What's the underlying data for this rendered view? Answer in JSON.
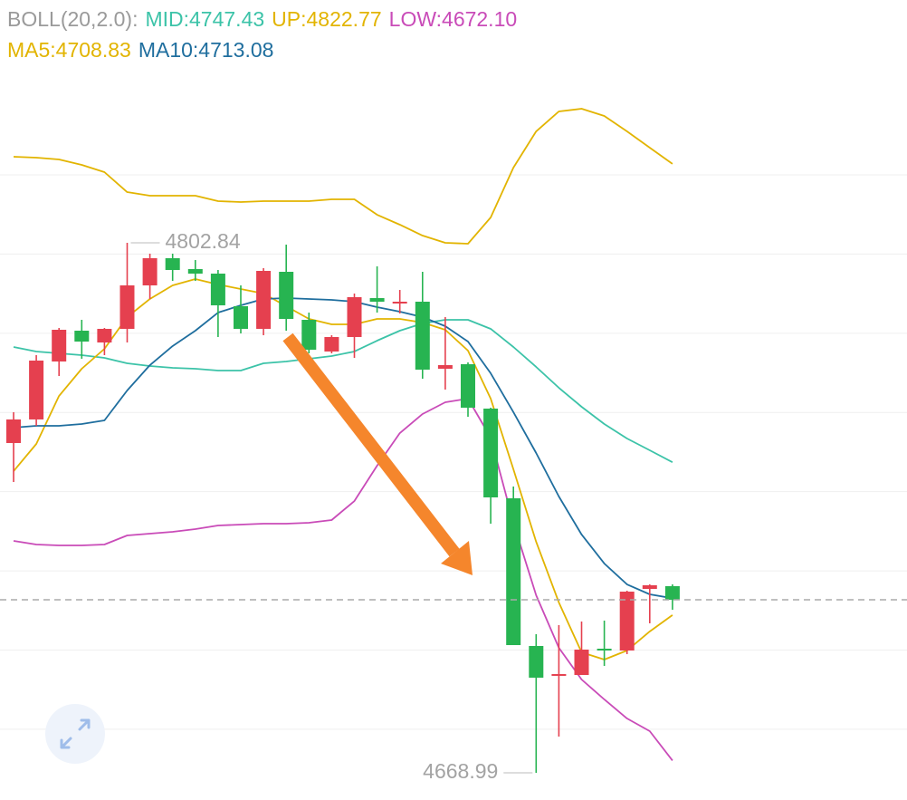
{
  "chart_data": {
    "type": "candlestick",
    "indicator": "BOLL(20,2.0):",
    "up_color": "#e5404f",
    "down_color": "#27b451",
    "ylim": [
      4662.13,
      4864.16
    ],
    "yticks": [
      4680,
      4700,
      4720,
      4740,
      4760,
      4780,
      4800,
      4820
    ],
    "grid": true,
    "open": [
      4752.28,
      4758.23,
      4772.87,
      4780.65,
      4777.67,
      4781.11,
      4792.09,
      4798.95,
      4796.21,
      4795.06,
      4786.83,
      4781.11,
      4795.52,
      4783.39,
      4775.39,
      4779.05,
      4788.88,
      4787.51,
      4787.97,
      4771.04,
      4772.18,
      4760.97,
      4738.32,
      4701.03,
      4693.48,
      4693.7,
      4700.34,
      4699.88,
      4715.44,
      4716.13
    ],
    "high": [
      4760.06,
      4774.47,
      4781.33,
      4783.39,
      4781.33,
      4802.84,
      4800.1,
      4800.1,
      4798.49,
      4795.98,
      4792.09,
      4796.44,
      4802.38,
      4785.22,
      4779.5,
      4790.03,
      4796.89,
      4790.94,
      4795.52,
      4784.08,
      4772.64,
      4761.2,
      4741.29,
      4704.0,
      4706.29,
      4707.2,
      4707.43,
      4714.98,
      4716.58,
      4716.58
    ],
    "low": [
      4742.44,
      4756.62,
      4769.21,
      4773.56,
      4774.47,
      4777.67,
      4788.66,
      4793.23,
      4793.23,
      4779.05,
      4779.96,
      4779.5,
      4780.65,
      4774.93,
      4774.93,
      4773.78,
      4785.22,
      4785.0,
      4768.52,
      4765.78,
      4758.91,
      4731.91,
      4701.25,
      4668.99,
      4678.15,
      4693.7,
      4695.99,
      4698.97,
      4706.75,
      4710.18
    ],
    "close": [
      4758.23,
      4773.1,
      4780.88,
      4777.9,
      4781.11,
      4792.09,
      4798.95,
      4795.98,
      4795.06,
      4787.05,
      4781.11,
      4795.75,
      4783.62,
      4775.84,
      4779.05,
      4789.11,
      4787.97,
      4787.97,
      4770.81,
      4771.95,
      4761.2,
      4738.55,
      4701.25,
      4693.02,
      4693.93,
      4700.11,
      4699.88,
      4714.75,
      4716.36,
      4712.69
    ],
    "series": [
      {
        "name": "MID:4747.43",
        "color": "#3cc3a8",
        "values": [
          4776.53,
          4775.39,
          4774.93,
          4774.47,
          4773.78,
          4772.41,
          4771.72,
          4771.27,
          4771.04,
          4770.58,
          4770.58,
          4772.41,
          4772.87,
          4773.56,
          4774.24,
          4775.39,
          4778.13,
          4780.65,
          4782.48,
          4783.39,
          4783.39,
          4781.11,
          4776.53,
          4771.5,
          4766.23,
          4761.43,
          4757.08,
          4753.42,
          4750.45,
          4747.43
        ]
      },
      {
        "name": "UP:4822.77",
        "color": "#e2b400",
        "values": [
          4824.58,
          4824.35,
          4823.89,
          4822.52,
          4820.69,
          4815.65,
          4814.74,
          4814.74,
          4814.74,
          4813.37,
          4813.14,
          4813.37,
          4813.37,
          4813.37,
          4813.82,
          4813.82,
          4809.93,
          4807.42,
          4804.67,
          4802.84,
          4802.61,
          4809.25,
          4821.83,
          4830.98,
          4836.02,
          4836.7,
          4834.87,
          4830.98,
          4826.87,
          4822.77
        ]
      },
      {
        "name": "LOW:4672.10",
        "color": "#c94bb8",
        "values": [
          4727.57,
          4726.65,
          4726.42,
          4726.42,
          4726.65,
          4728.94,
          4729.4,
          4729.85,
          4730.54,
          4731.46,
          4731.68,
          4731.91,
          4731.91,
          4732.14,
          4732.83,
          4737.63,
          4746.56,
          4754.79,
          4759.6,
          4762.57,
          4763.49,
          4753.65,
          4732.14,
          4713.84,
          4700.57,
          4692.56,
          4687.53,
          4682.72,
          4679.52,
          4672.1
        ]
      },
      {
        "name": "MA5:4708.83",
        "color": "#e2b400",
        "values": [
          4745.18,
          4752.05,
          4764.17,
          4771.04,
          4776.07,
          4784.08,
          4788.66,
          4792.09,
          4793.69,
          4792.32,
          4791.17,
          4790.03,
          4786.83,
          4783.62,
          4782.25,
          4782.25,
          4783.62,
          4783.62,
          4782.71,
          4780.88,
          4775.61,
          4763.49,
          4745.64,
          4727.34,
          4712.01,
          4699.42,
          4697.59,
          4699.88,
          4704.69,
          4708.83
        ]
      },
      {
        "name": "MA10:4713.08",
        "color": "#1f6e9e",
        "values": [
          4756.17,
          4756.62,
          4756.62,
          4757.08,
          4758.0,
          4765.55,
          4771.95,
          4776.76,
          4780.65,
          4785.22,
          4787.05,
          4788.66,
          4788.88,
          4788.66,
          4788.43,
          4787.97,
          4786.6,
          4785.45,
          4784.08,
          4781.79,
          4777.9,
          4769.89,
          4760.06,
          4749.76,
          4738.78,
          4729.17,
          4721.85,
          4716.58,
          4714.07,
          4713.08
        ]
      }
    ]
  }
}
